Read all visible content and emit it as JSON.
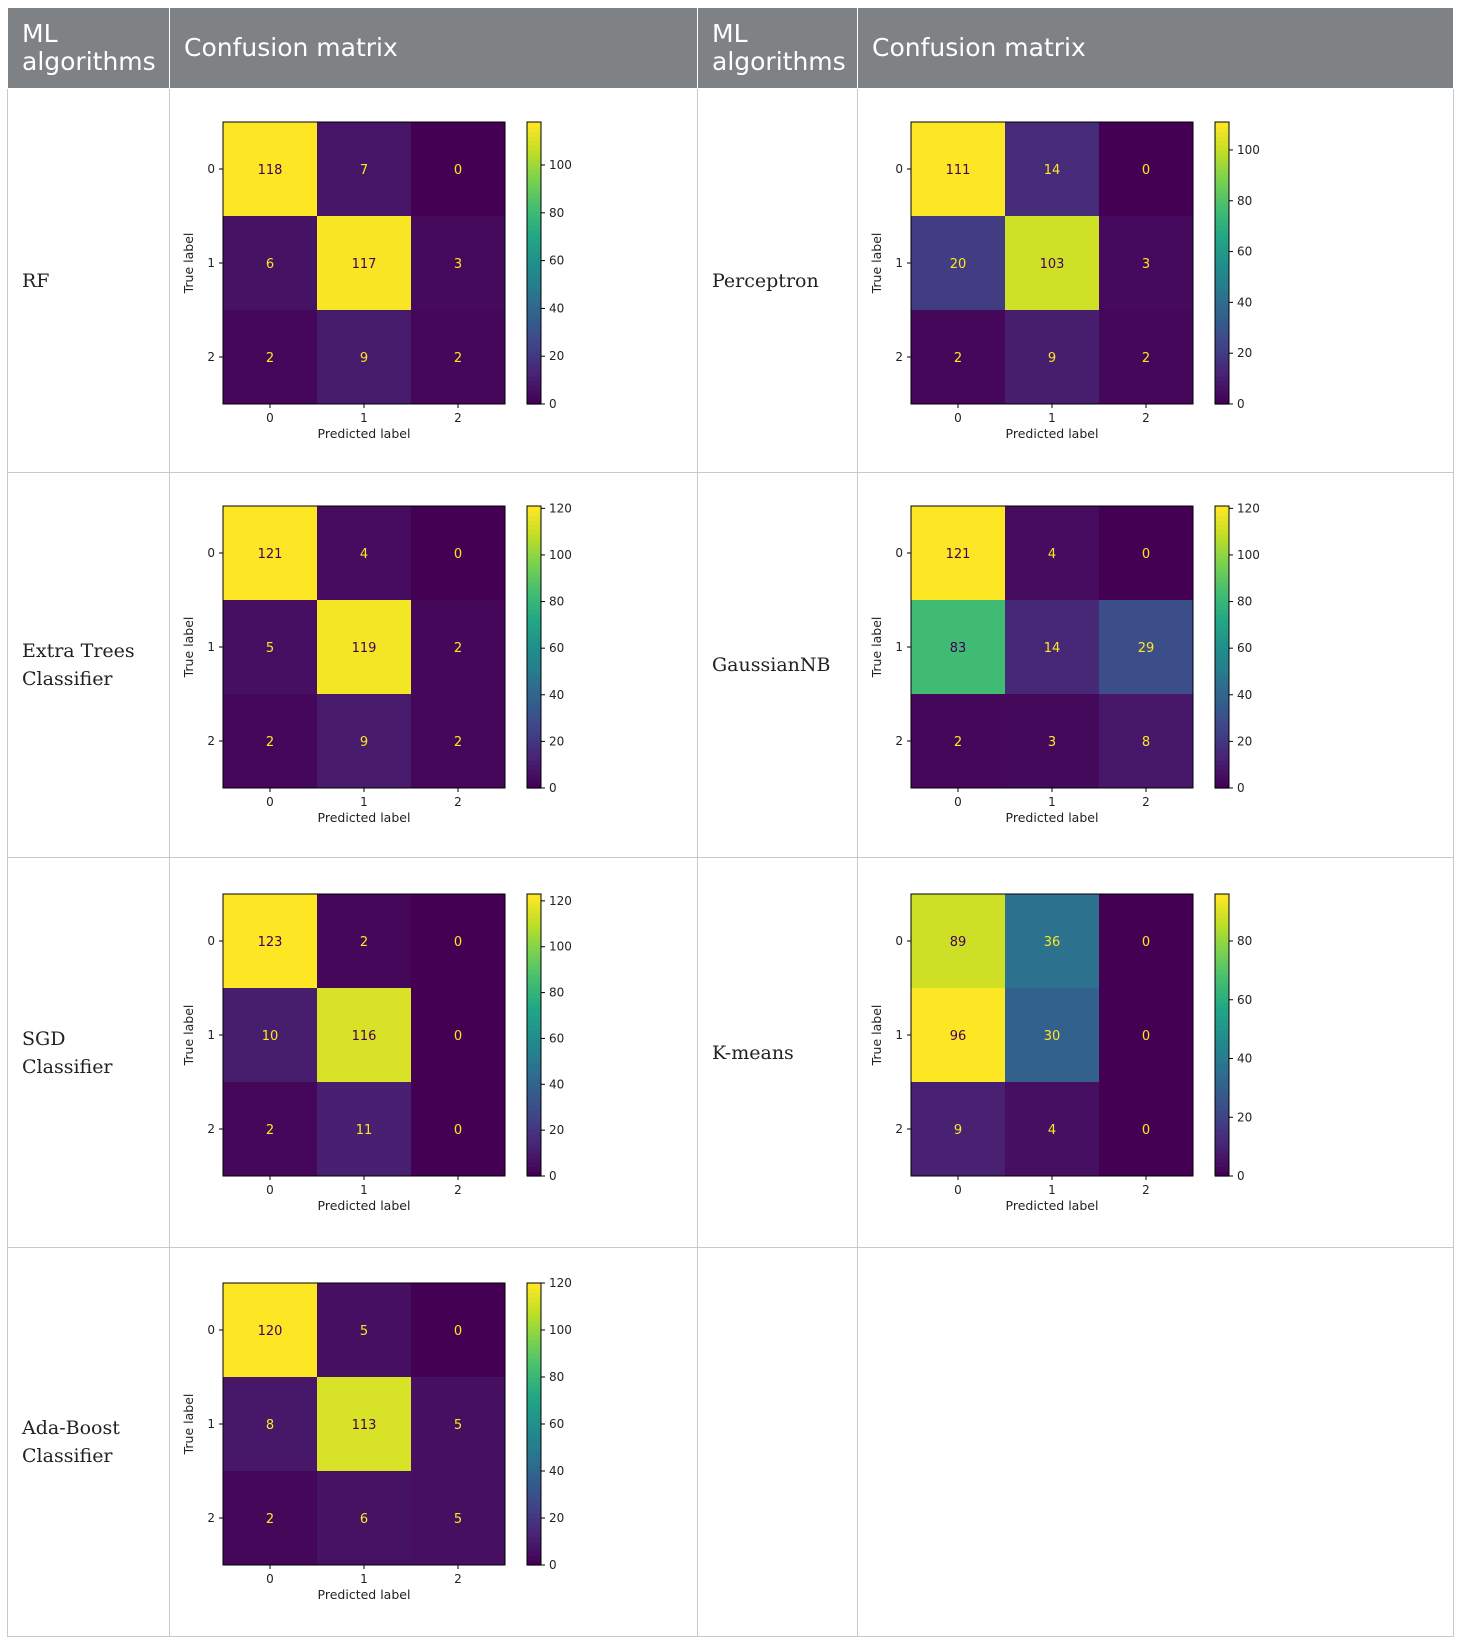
{
  "headers": [
    "ML algorithms",
    "Confusion matrix",
    "ML algorithms",
    "Confusion matrix"
  ],
  "rows": [
    {
      "left": {
        "algorithm": "RF",
        "matrix_index": 0
      },
      "right": {
        "algorithm": "Perceptron",
        "matrix_index": 1
      }
    },
    {
      "left": {
        "algorithm": "Extra Trees Classifier",
        "matrix_index": 2
      },
      "right": {
        "algorithm": "GaussianNB",
        "matrix_index": 3
      }
    },
    {
      "left": {
        "algorithm": "SGD Classifier",
        "matrix_index": 4
      },
      "right": {
        "algorithm": "K-means",
        "matrix_index": 5
      }
    },
    {
      "left": {
        "algorithm": "Ada-Boost Classifier",
        "matrix_index": 6
      },
      "right": null
    }
  ],
  "chart_data": [
    {
      "type": "heatmap",
      "algorithm": "RF",
      "title": "",
      "xlabel": "Predicted label",
      "ylabel": "True label",
      "x_ticks": [
        "0",
        "1",
        "2"
      ],
      "y_ticks": [
        "0",
        "1",
        "2"
      ],
      "values": [
        [
          118,
          7,
          0
        ],
        [
          6,
          117,
          3
        ],
        [
          2,
          9,
          2
        ]
      ],
      "colorbar_ticks": [
        0,
        20,
        40,
        60,
        80,
        100
      ],
      "colorbar_range": [
        0,
        118
      ],
      "colormap": "viridis"
    },
    {
      "type": "heatmap",
      "algorithm": "Perceptron",
      "title": "",
      "xlabel": "Predicted label",
      "ylabel": "True label",
      "x_ticks": [
        "0",
        "1",
        "2"
      ],
      "y_ticks": [
        "0",
        "1",
        "2"
      ],
      "values": [
        [
          111,
          14,
          0
        ],
        [
          20,
          103,
          3
        ],
        [
          2,
          9,
          2
        ]
      ],
      "colorbar_ticks": [
        0,
        20,
        40,
        60,
        80,
        100
      ],
      "colorbar_range": [
        0,
        111
      ],
      "colormap": "viridis"
    },
    {
      "type": "heatmap",
      "algorithm": "Extra Trees Classifier",
      "title": "",
      "xlabel": "Predicted label",
      "ylabel": "True label",
      "x_ticks": [
        "0",
        "1",
        "2"
      ],
      "y_ticks": [
        "0",
        "1",
        "2"
      ],
      "values": [
        [
          121,
          4,
          0
        ],
        [
          5,
          119,
          2
        ],
        [
          2,
          9,
          2
        ]
      ],
      "colorbar_ticks": [
        0,
        20,
        40,
        60,
        80,
        100,
        120
      ],
      "colorbar_range": [
        0,
        121
      ],
      "colormap": "viridis"
    },
    {
      "type": "heatmap",
      "algorithm": "GaussianNB",
      "title": "",
      "xlabel": "Predicted label",
      "ylabel": "True label",
      "x_ticks": [
        "0",
        "1",
        "2"
      ],
      "y_ticks": [
        "0",
        "1",
        "2"
      ],
      "values": [
        [
          121,
          4,
          0
        ],
        [
          83,
          14,
          29
        ],
        [
          2,
          3,
          8
        ]
      ],
      "colorbar_ticks": [
        0,
        20,
        40,
        60,
        80,
        100,
        120
      ],
      "colorbar_range": [
        0,
        121
      ],
      "colormap": "viridis"
    },
    {
      "type": "heatmap",
      "algorithm": "SGD Classifier",
      "title": "",
      "xlabel": "Predicted label",
      "ylabel": "True label",
      "x_ticks": [
        "0",
        "1",
        "2"
      ],
      "y_ticks": [
        "0",
        "1",
        "2"
      ],
      "values": [
        [
          123,
          2,
          0
        ],
        [
          10,
          116,
          0
        ],
        [
          2,
          11,
          0
        ]
      ],
      "colorbar_ticks": [
        0,
        20,
        40,
        60,
        80,
        100,
        120
      ],
      "colorbar_range": [
        0,
        123
      ],
      "colormap": "viridis"
    },
    {
      "type": "heatmap",
      "algorithm": "K-means",
      "title": "",
      "xlabel": "Predicted label",
      "ylabel": "True label",
      "x_ticks": [
        "0",
        "1",
        "2"
      ],
      "y_ticks": [
        "0",
        "1",
        "2"
      ],
      "values": [
        [
          89,
          36,
          0
        ],
        [
          96,
          30,
          0
        ],
        [
          9,
          4,
          0
        ]
      ],
      "colorbar_ticks": [
        0,
        20,
        40,
        60,
        80
      ],
      "colorbar_range": [
        0,
        96
      ],
      "colormap": "viridis"
    },
    {
      "type": "heatmap",
      "algorithm": "Ada-Boost Classifier",
      "title": "",
      "xlabel": "Predicted label",
      "ylabel": "True label",
      "x_ticks": [
        "0",
        "1",
        "2"
      ],
      "y_ticks": [
        "0",
        "1",
        "2"
      ],
      "values": [
        [
          120,
          5,
          0
        ],
        [
          8,
          113,
          5
        ],
        [
          2,
          6,
          5
        ]
      ],
      "colorbar_ticks": [
        0,
        20,
        40,
        60,
        80,
        100,
        120
      ],
      "colorbar_range": [
        0,
        120
      ],
      "colormap": "viridis"
    }
  ]
}
